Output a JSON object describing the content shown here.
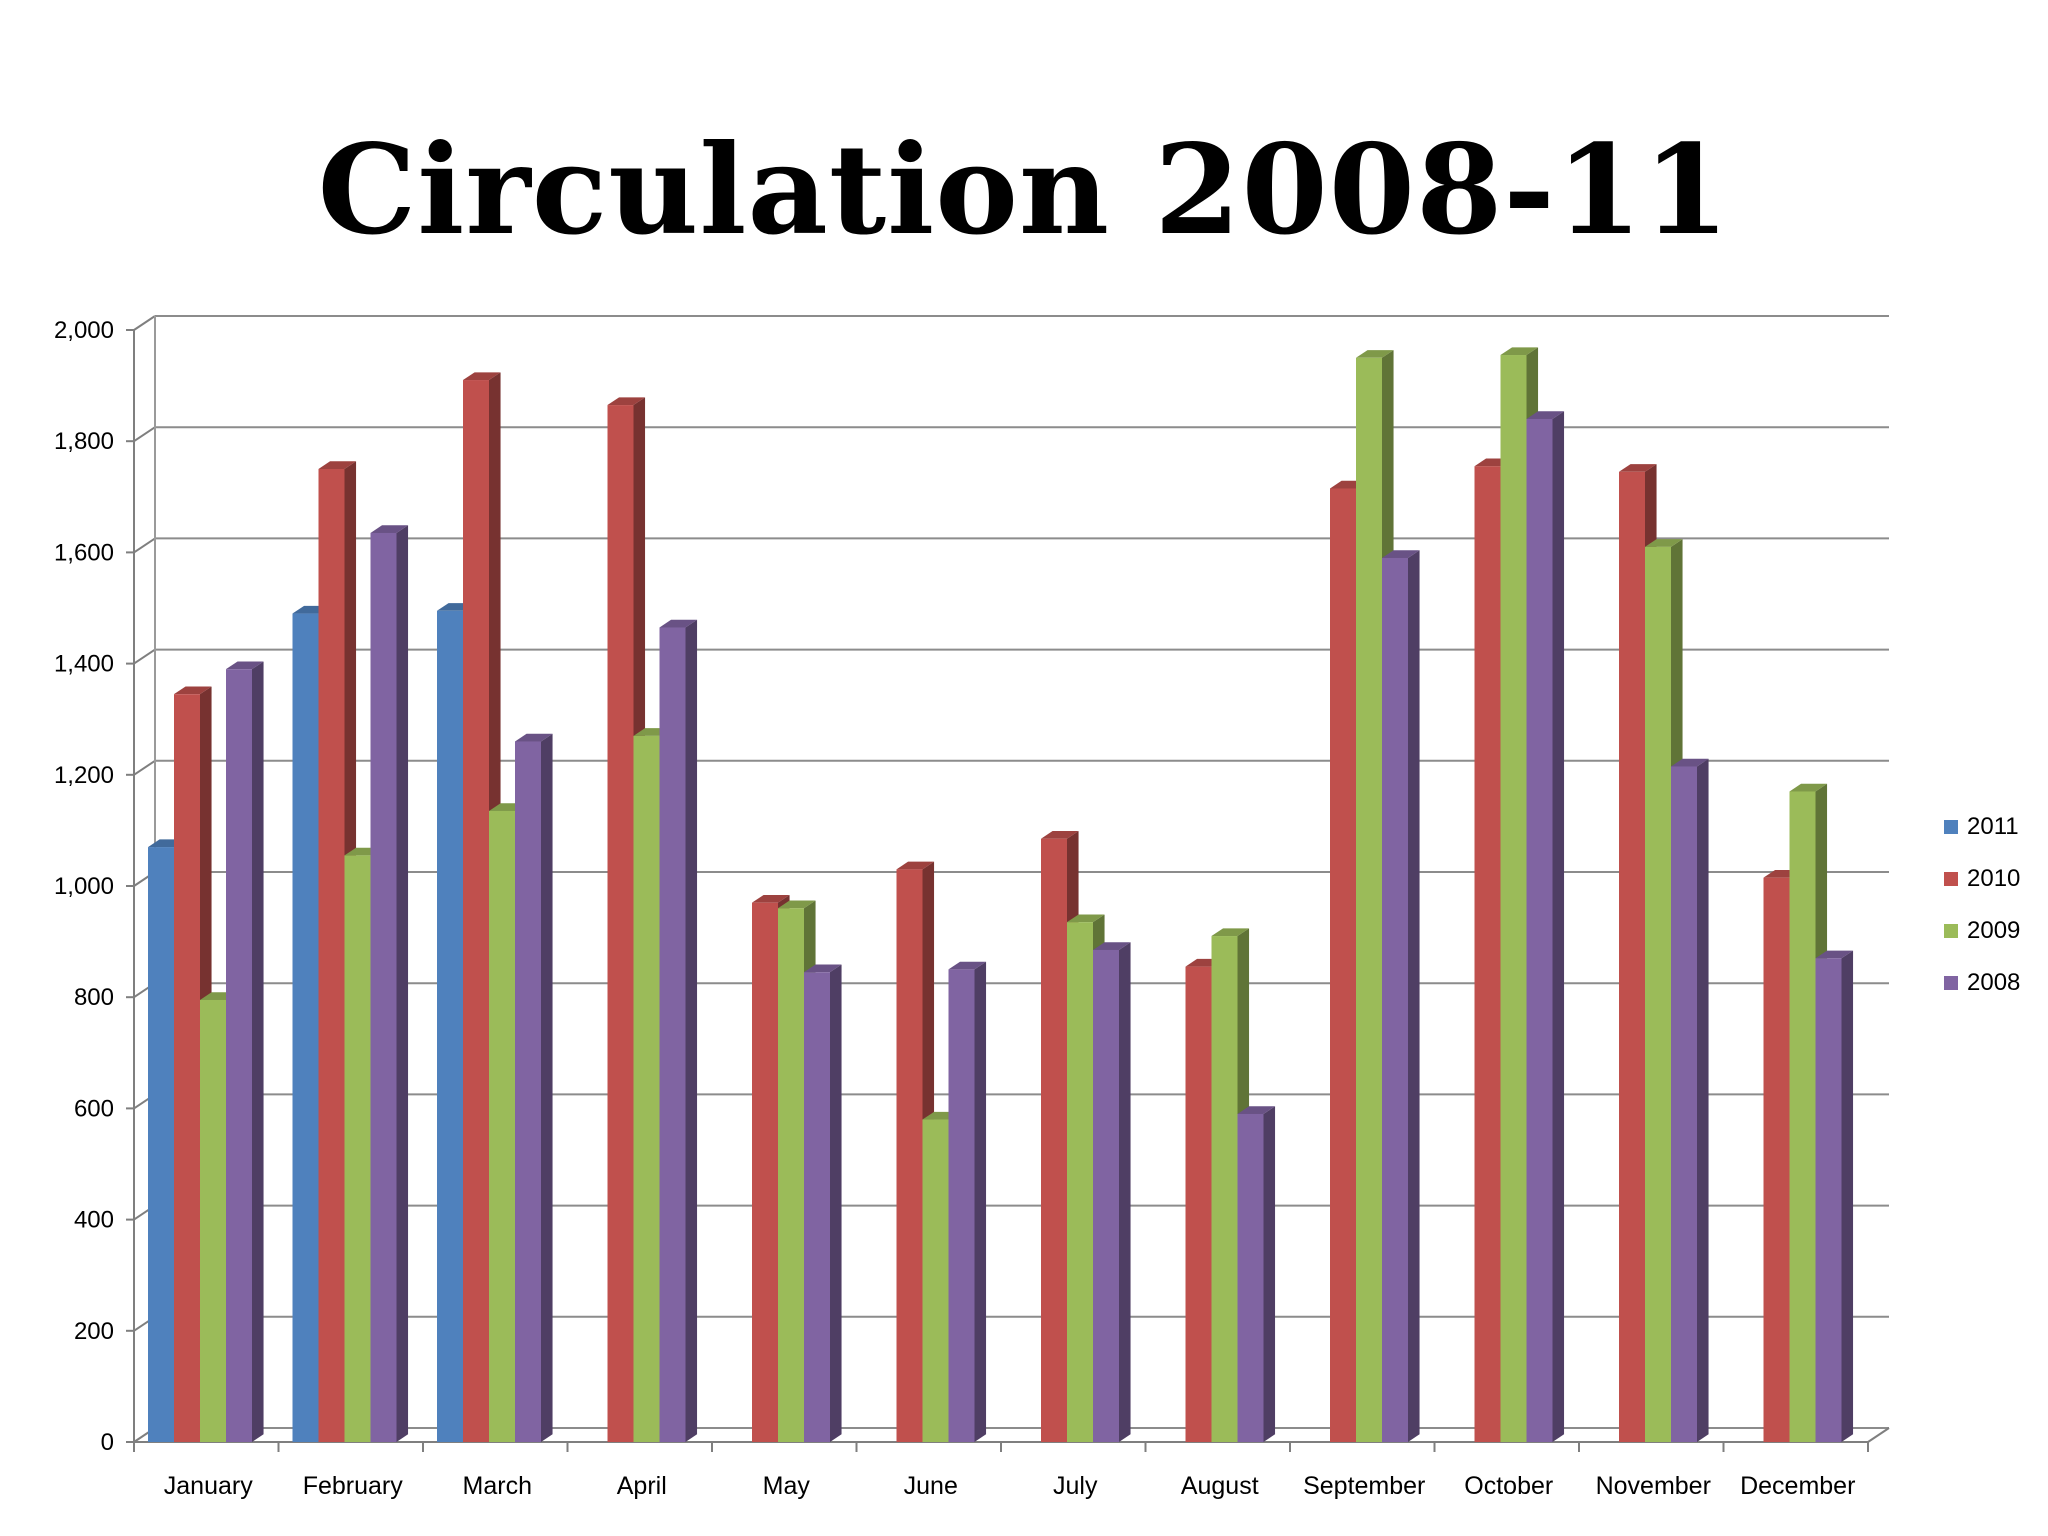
{
  "chart_data": {
    "type": "bar",
    "title": "Circulation 2008-11",
    "xlabel": "",
    "ylabel": "",
    "ylim": [
      0,
      2000
    ],
    "yticks": [
      0,
      200,
      400,
      600,
      800,
      1000,
      1200,
      1400,
      1600,
      1800,
      2000
    ],
    "ytick_labels": [
      "0",
      "200",
      "400",
      "600",
      "800",
      "1,000",
      "1,200",
      "1,400",
      "1,600",
      "1,800",
      "2,000"
    ],
    "grid": true,
    "legend_position": "right",
    "categories": [
      "January",
      "February",
      "March",
      "April",
      "May",
      "June",
      "July",
      "August",
      "September",
      "October",
      "November",
      "December"
    ],
    "series": [
      {
        "name": "2011",
        "color": "#4f81bd",
        "values": [
          1070,
          1490,
          1495,
          null,
          null,
          null,
          null,
          null,
          null,
          null,
          null,
          null
        ]
      },
      {
        "name": "2010",
        "color": "#c0504d",
        "values": [
          1345,
          1750,
          1910,
          1865,
          970,
          1030,
          1085,
          855,
          1715,
          1755,
          1745,
          1015
        ]
      },
      {
        "name": "2009",
        "color": "#9bbb59",
        "values": [
          795,
          1055,
          1135,
          1270,
          960,
          580,
          935,
          910,
          1950,
          1955,
          1610,
          1170
        ]
      },
      {
        "name": "2008",
        "color": "#8064a2",
        "values": [
          1390,
          1635,
          1260,
          1465,
          845,
          850,
          885,
          590,
          1590,
          1840,
          1215,
          870
        ]
      }
    ]
  }
}
